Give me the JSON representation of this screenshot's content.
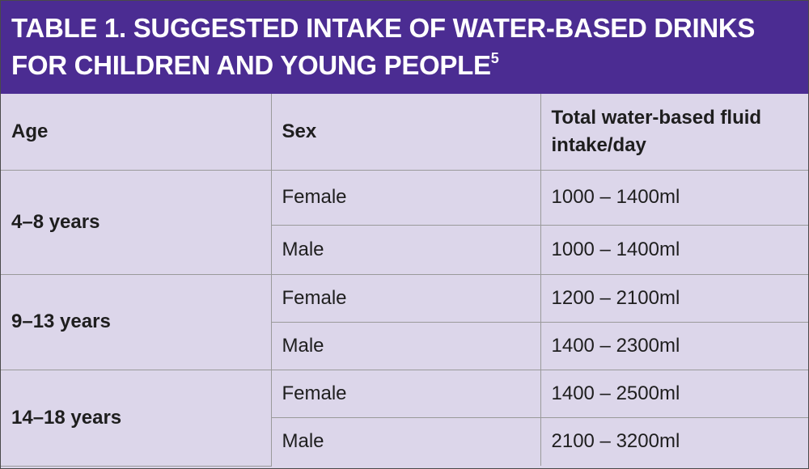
{
  "title": {
    "line1": "TABLE 1. SUGGESTED INTAKE OF WATER-BASED DRINKS",
    "line2": "FOR CHILDREN AND YOUNG PEOPLE",
    "footnote": "5"
  },
  "table": {
    "headers": {
      "age": "Age",
      "sex": "Sex",
      "intake": "Total water-based fluid intake/day"
    },
    "groups": [
      {
        "age": "4–8 years",
        "rows": [
          {
            "sex": "Female",
            "intake": "1000 – 1400ml"
          },
          {
            "sex": "Male",
            "intake": "1000 – 1400ml"
          }
        ]
      },
      {
        "age": "9–13 years",
        "rows": [
          {
            "sex": "Female",
            "intake": "1200 – 2100ml"
          },
          {
            "sex": "Male",
            "intake": "1400 – 2300ml"
          }
        ]
      },
      {
        "age": "14–18 years",
        "rows": [
          {
            "sex": "Female",
            "intake": "1400 – 2500ml"
          },
          {
            "sex": "Male",
            "intake": "2100 – 3200ml"
          }
        ]
      }
    ]
  },
  "colors": {
    "title_background": "#4b2c92",
    "title_text": "#ffffff",
    "table_background": "#dcd6ea",
    "grid_lines": "#9a9a9a",
    "body_text": "#1e1e1e"
  }
}
